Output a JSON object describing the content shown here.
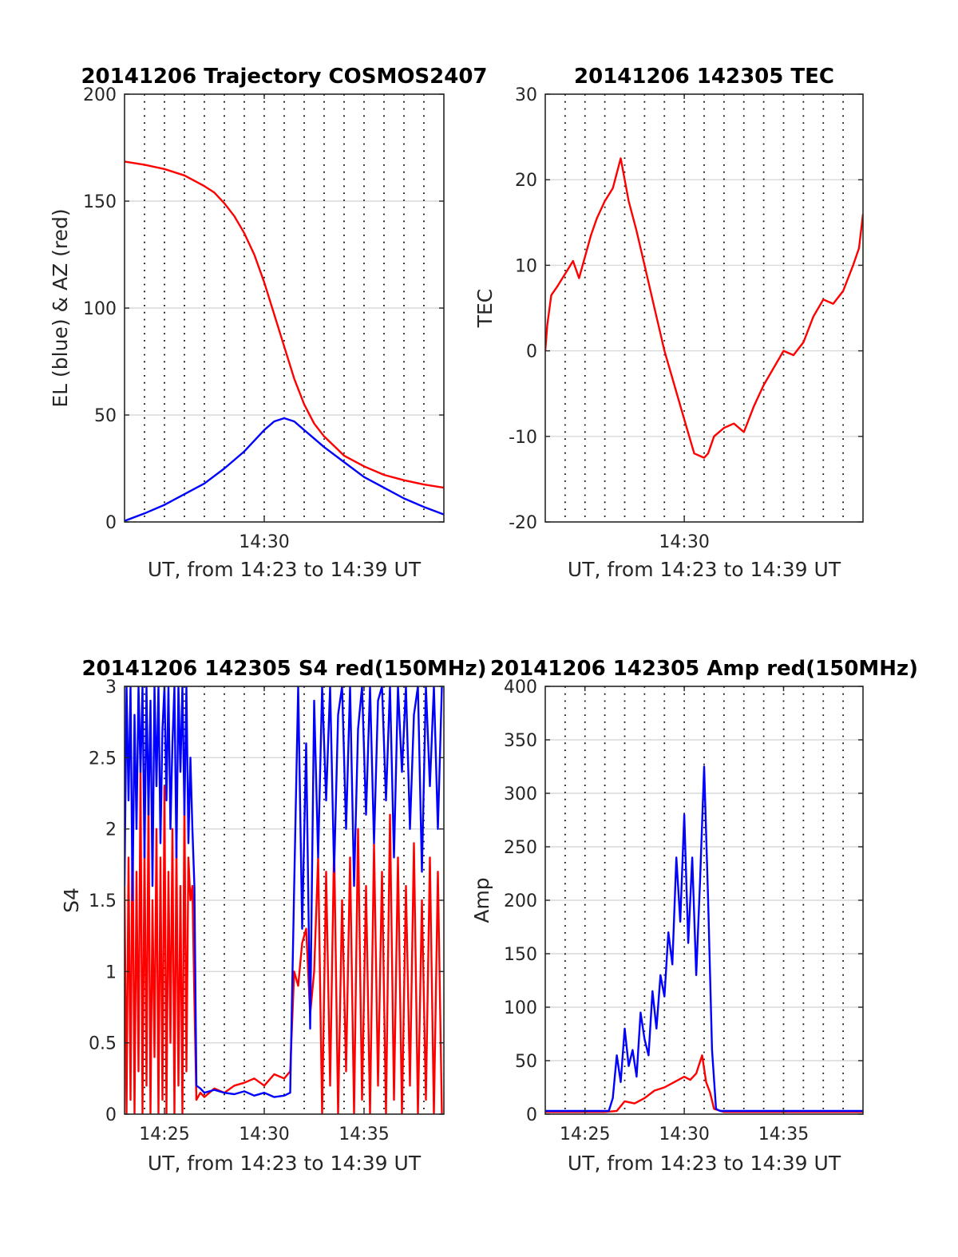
{
  "chart_data": [
    {
      "type": "line",
      "title": "20141206 Trajectory COSMOS2407",
      "xlabel": "UT, from 14:23 to 14:39 UT",
      "ylabel": "EL (blue) & AZ (red)",
      "xlim": [
        23,
        39
      ],
      "ylim": [
        0,
        200
      ],
      "x_ticks": [
        30
      ],
      "x_tick_labels": [
        "14:30"
      ],
      "y_ticks": [
        0,
        50,
        100,
        150,
        200
      ],
      "grid": true,
      "series": [
        {
          "color": "#ff0000",
          "x": [
            23,
            24,
            25,
            26,
            27,
            27.5,
            28,
            28.5,
            29,
            29.5,
            30,
            30.5,
            31,
            31.5,
            32,
            32.5,
            33,
            34,
            35,
            36,
            37,
            38,
            39
          ],
          "y": [
            168.5,
            167,
            165,
            162,
            157,
            154,
            149,
            143,
            135,
            125,
            112,
            97,
            82,
            67,
            55,
            46,
            40,
            31,
            26,
            22,
            19.5,
            17.5,
            16
          ]
        },
        {
          "color": "#0000ff",
          "x": [
            23,
            24,
            25,
            26,
            27,
            28,
            29,
            29.5,
            30,
            30.5,
            31,
            31.5,
            32,
            33,
            34,
            35,
            36,
            37,
            38,
            39
          ],
          "y": [
            0.5,
            4,
            8,
            13,
            18,
            25,
            33,
            38,
            43,
            47,
            48.5,
            47,
            43,
            35,
            28,
            21,
            16,
            11,
            7,
            3.5
          ]
        }
      ]
    },
    {
      "type": "line",
      "title": "20141206 142305 TEC",
      "xlabel": "UT, from 14:23 to 14:39 UT",
      "ylabel": "TEC",
      "xlim": [
        23,
        39
      ],
      "ylim": [
        -20,
        30
      ],
      "x_ticks": [
        30
      ],
      "x_tick_labels": [
        "14:30"
      ],
      "y_ticks": [
        -20,
        -10,
        0,
        10,
        20,
        30
      ],
      "grid": true,
      "series": [
        {
          "color": "#ff0000",
          "x": [
            23,
            23.1,
            23.3,
            23.6,
            24,
            24.4,
            24.7,
            25,
            25.3,
            25.6,
            26,
            26.4,
            26.8,
            27,
            27.2,
            27.6,
            28,
            28.5,
            29,
            29.5,
            30,
            30.5,
            31,
            31.2,
            31.5,
            32,
            32.5,
            33,
            33.5,
            34,
            34.5,
            35,
            35.5,
            36,
            36.5,
            37,
            37.5,
            38,
            38.5,
            38.8,
            39
          ],
          "y": [
            0,
            3,
            6.5,
            7.5,
            9,
            10.5,
            8.5,
            11,
            13.5,
            15.5,
            17.5,
            19,
            22.5,
            20,
            17.5,
            14,
            10,
            5,
            0,
            -4,
            -8,
            -12,
            -12.5,
            -12,
            -10,
            -9,
            -8.5,
            -9.5,
            -6.5,
            -4,
            -2,
            0,
            -0.5,
            1,
            4,
            6,
            5.5,
            7,
            10,
            12,
            16
          ]
        }
      ]
    },
    {
      "type": "line",
      "title": "20141206 142305 S4 red(150MHz)",
      "xlabel": "UT, from 14:23 to 14:39 UT",
      "ylabel": "S4",
      "xlim": [
        23,
        39
      ],
      "ylim": [
        0,
        3
      ],
      "x_ticks": [
        25,
        30,
        35
      ],
      "x_tick_labels": [
        "14:25",
        "14:30",
        "14:35"
      ],
      "y_ticks": [
        0,
        0.5,
        1,
        1.5,
        2,
        2.5,
        3
      ],
      "y_tick_labels": [
        "0",
        "0.5",
        "1",
        "1.5",
        "2",
        "2.5",
        "3"
      ],
      "grid": true,
      "series": [
        {
          "color": "#ff0000",
          "x": [
            23.0,
            23.1,
            23.2,
            23.3,
            23.4,
            23.5,
            23.6,
            23.7,
            23.8,
            23.9,
            24.0,
            24.1,
            24.2,
            24.3,
            24.4,
            24.5,
            24.6,
            24.7,
            24.8,
            24.9,
            25.0,
            25.1,
            25.2,
            25.3,
            25.4,
            25.5,
            25.6,
            25.7,
            25.8,
            25.9,
            26.0,
            26.1,
            26.2,
            26.3,
            26.4,
            26.5,
            26.6,
            26.8,
            27.0,
            27.5,
            28.0,
            28.5,
            29.0,
            29.5,
            30.0,
            30.5,
            31.0,
            31.3,
            31.5,
            31.7,
            31.9,
            32.1,
            32.3,
            32.5,
            32.7,
            32.9,
            33.1,
            33.3,
            33.5,
            33.7,
            33.9,
            34.1,
            34.3,
            34.5,
            34.7,
            34.9,
            35.1,
            35.3,
            35.5,
            35.7,
            35.9,
            36.1,
            36.3,
            36.5,
            36.7,
            36.9,
            37.1,
            37.3,
            37.5,
            37.7,
            37.9,
            38.1,
            38.3,
            38.5,
            38.7,
            38.9
          ],
          "y": [
            1.6,
            0.0,
            1.8,
            0.1,
            2.1,
            0.0,
            1.7,
            0.3,
            2.4,
            0.0,
            1.9,
            0.2,
            2.2,
            0.0,
            1.5,
            0.4,
            2.0,
            0.0,
            1.8,
            0.1,
            2.3,
            0.0,
            1.7,
            0.5,
            2.0,
            0.0,
            1.9,
            0.2,
            1.6,
            0.0,
            2.2,
            0.3,
            1.8,
            1.5,
            1.6,
            0.8,
            0.1,
            0.15,
            0.12,
            0.18,
            0.15,
            0.2,
            0.22,
            0.25,
            0.2,
            0.28,
            0.25,
            0.3,
            1.0,
            0.9,
            1.2,
            1.3,
            0.7,
            1.0,
            1.8,
            0.0,
            1.7,
            0.2,
            1.9,
            0.0,
            1.5,
            0.3,
            1.8,
            0.0,
            2.0,
            0.1,
            1.6,
            0.0,
            1.9,
            0.2,
            1.7,
            0.0,
            2.1,
            0.1,
            1.8,
            0.0,
            1.6,
            0.2,
            1.9,
            0.0,
            1.5,
            0.1,
            1.8,
            0.0,
            1.7,
            0.0
          ]
        },
        {
          "color": "#0000ff",
          "x": [
            23.0,
            23.1,
            23.2,
            23.3,
            23.4,
            23.5,
            23.6,
            23.7,
            23.8,
            23.9,
            24.0,
            24.1,
            24.2,
            24.3,
            24.4,
            24.5,
            24.6,
            24.7,
            24.8,
            24.9,
            25.0,
            25.1,
            25.2,
            25.3,
            25.4,
            25.5,
            25.6,
            25.7,
            25.8,
            25.9,
            26.0,
            26.1,
            26.2,
            26.3,
            26.4,
            26.5,
            26.6,
            26.8,
            27.0,
            27.5,
            28.0,
            28.5,
            29.0,
            29.5,
            30.0,
            30.5,
            31.0,
            31.3,
            31.5,
            31.7,
            31.9,
            32.1,
            32.3,
            32.5,
            32.7,
            32.9,
            33.1,
            33.3,
            33.5,
            33.7,
            33.9,
            34.1,
            34.3,
            34.5,
            34.7,
            34.9,
            35.1,
            35.3,
            35.5,
            35.7,
            35.9,
            36.1,
            36.3,
            36.5,
            36.7,
            36.9,
            37.1,
            37.3,
            37.5,
            37.7,
            37.9,
            38.1,
            38.3,
            38.5,
            38.7,
            38.9
          ],
          "y": [
            1.6,
            3.0,
            2.2,
            3.0,
            1.5,
            2.8,
            2.0,
            3.0,
            2.4,
            3.0,
            1.8,
            3.0,
            2.1,
            2.9,
            1.6,
            3.0,
            2.3,
            3.0,
            1.9,
            2.7,
            3.0,
            2.2,
            3.0,
            2.0,
            2.6,
            3.0,
            1.8,
            3.0,
            2.4,
            3.0,
            2.1,
            3.0,
            1.9,
            2.5,
            2.0,
            1.6,
            0.2,
            0.18,
            0.15,
            0.17,
            0.15,
            0.14,
            0.16,
            0.13,
            0.15,
            0.12,
            0.13,
            0.15,
            1.6,
            3.0,
            1.3,
            2.6,
            0.6,
            2.9,
            1.8,
            3.0,
            2.2,
            3.0,
            1.7,
            2.8,
            3.0,
            2.0,
            3.0,
            1.6,
            2.7,
            3.0,
            2.1,
            3.0,
            1.9,
            2.9,
            3.0,
            2.2,
            3.0,
            1.8,
            3.0,
            2.4,
            3.0,
            2.0,
            2.8,
            3.0,
            1.7,
            3.0,
            2.3,
            3.0,
            2.0,
            3.0
          ]
        }
      ]
    },
    {
      "type": "line",
      "title": "20141206 142305 Amp red(150MHz)",
      "xlabel": "UT, from 14:23 to 14:39 UT",
      "ylabel": "Amp",
      "xlim": [
        23,
        39
      ],
      "ylim": [
        0,
        400
      ],
      "x_ticks": [
        25,
        30,
        35
      ],
      "x_tick_labels": [
        "14:25",
        "14:30",
        "14:35"
      ],
      "y_ticks": [
        0,
        50,
        100,
        150,
        200,
        250,
        300,
        350,
        400
      ],
      "grid": true,
      "series": [
        {
          "color": "#ff0000",
          "x": [
            23,
            26,
            26.6,
            27,
            27.5,
            28,
            28.5,
            29,
            29.5,
            30,
            30.3,
            30.6,
            30.9,
            31.1,
            31.3,
            31.5,
            32,
            39
          ],
          "y": [
            2,
            2,
            3,
            12,
            10,
            15,
            22,
            25,
            30,
            35,
            32,
            38,
            55,
            30,
            20,
            5,
            2,
            2
          ]
        },
        {
          "color": "#0000ff",
          "x": [
            23,
            26.2,
            26.4,
            26.6,
            26.8,
            27.0,
            27.2,
            27.4,
            27.6,
            27.8,
            28.0,
            28.2,
            28.4,
            28.6,
            28.8,
            29.0,
            29.2,
            29.4,
            29.6,
            29.8,
            30.0,
            30.2,
            30.4,
            30.6,
            30.8,
            31.0,
            31.2,
            31.4,
            31.6,
            31.8,
            39
          ],
          "y": [
            3,
            3,
            15,
            55,
            30,
            80,
            45,
            60,
            35,
            95,
            70,
            55,
            115,
            80,
            130,
            110,
            170,
            140,
            240,
            180,
            280,
            160,
            240,
            130,
            220,
            325,
            200,
            60,
            5,
            3,
            3
          ]
        }
      ]
    }
  ]
}
